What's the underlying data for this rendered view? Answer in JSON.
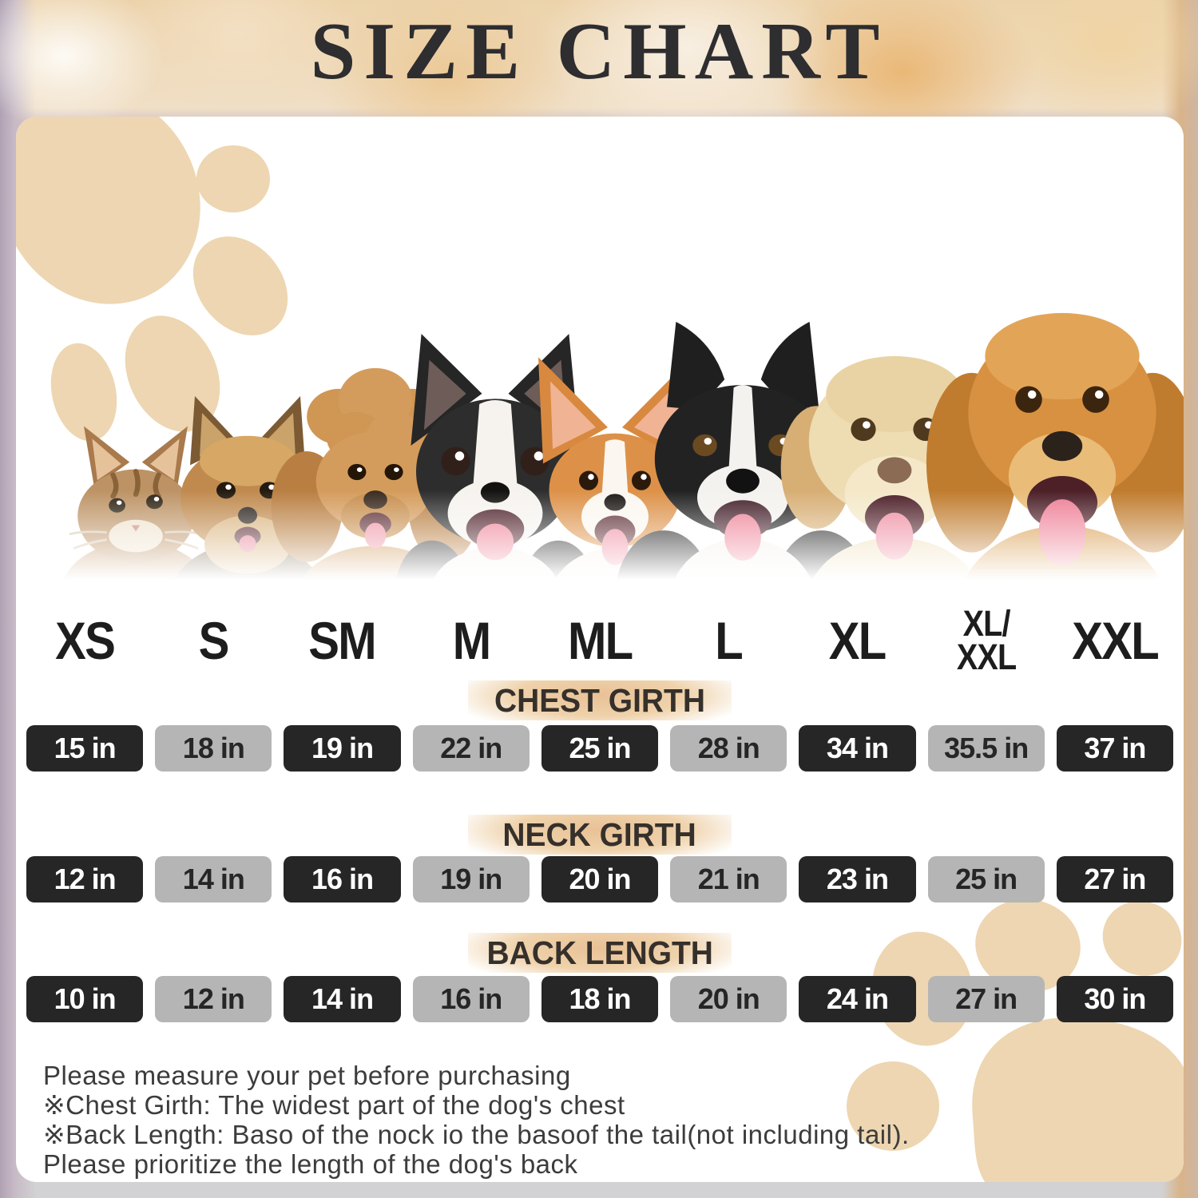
{
  "title": "SIZE CHART",
  "sizes": [
    {
      "label": "XS"
    },
    {
      "label": "S"
    },
    {
      "label": "SM"
    },
    {
      "label": "M"
    },
    {
      "label": "ML"
    },
    {
      "label": "L"
    },
    {
      "label": "XL"
    },
    {
      "label": "XL/XXL",
      "lines": [
        "XL/",
        "XXL"
      ]
    },
    {
      "label": "XXL"
    }
  ],
  "sections": [
    {
      "label": "CHEST GIRTH",
      "values": [
        "15 in",
        "18 in",
        "19 in",
        "22 in",
        "25 in",
        "28 in",
        "34 in",
        "35.5 in",
        "37 in"
      ]
    },
    {
      "label": "NECK GIRTH",
      "values": [
        "12 in",
        "14 in",
        "16 in",
        "19 in",
        "20 in",
        "21 in",
        "23 in",
        "25 in",
        "27 in"
      ]
    },
    {
      "label": "BACK LENGTH",
      "values": [
        "10 in",
        "12 in",
        "14 in",
        "16 in",
        "18 in",
        "20 in",
        "24 in",
        "27 in",
        "30 in"
      ]
    }
  ],
  "notes": [
    "Please measure your pet before purchasing",
    "※Chest Girth: The widest part of the dog's chest",
    "※Back Length: Baso of the nock io the basoof the tail(not including tail).",
    "Please prioritize the length of the dog's back"
  ],
  "pets": [
    {
      "breed": "cat"
    },
    {
      "breed": "yorkshire-terrier"
    },
    {
      "breed": "toy-poodle"
    },
    {
      "breed": "boston-terrier"
    },
    {
      "breed": "corgi"
    },
    {
      "breed": "border-collie"
    },
    {
      "breed": "labrador-retriever"
    },
    {
      "breed": "golden-retriever"
    }
  ],
  "colors": {
    "cell_dark": "#262626",
    "cell_dark_text": "#ffffff",
    "cell_gray": "#b5b5b5",
    "cell_gray_text": "#262626",
    "band_tan": "#e9c196",
    "paw_beige": "#edd6b1",
    "title_text": "#2e2d30",
    "note_text": "#3c3c3c"
  }
}
